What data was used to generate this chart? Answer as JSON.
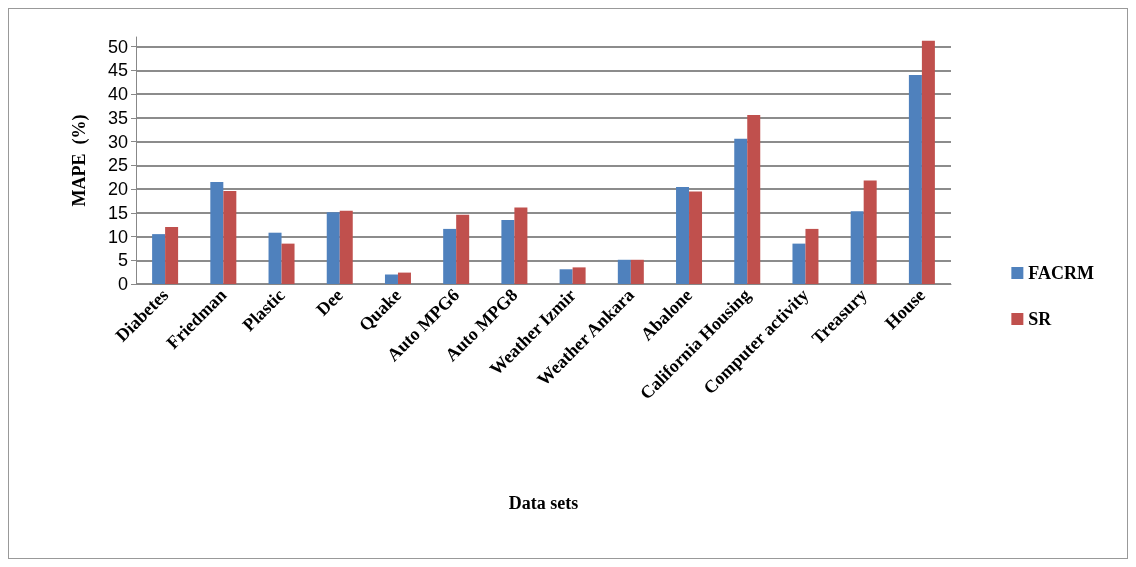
{
  "chart_data": {
    "type": "bar",
    "xlabel": "Data sets",
    "ylabel": "MAPE  (%)",
    "categories": [
      "Diabetes",
      "Friedman",
      "Plastic",
      "Dee",
      "Quake",
      "Auto MPG6",
      "Auto MPG8",
      "Weather Izmir",
      "Weather Ankara",
      "Abalone",
      "California Housing",
      "Computer activity",
      "Treasury",
      "House"
    ],
    "series": [
      {
        "name": "FACRM",
        "color": "#4f81bd",
        "values": [
          10.5,
          21.5,
          10.8,
          15.1,
          2.0,
          11.6,
          13.5,
          3.1,
          5.1,
          20.4,
          30.6,
          8.5,
          15.3,
          44.0
        ]
      },
      {
        "name": "SR",
        "color": "#c0504d",
        "values": [
          12.0,
          19.6,
          8.5,
          15.4,
          2.4,
          14.6,
          16.1,
          3.5,
          5.1,
          19.5,
          35.6,
          11.6,
          21.8,
          51.2
        ]
      }
    ],
    "ylim": [
      0,
      52
    ],
    "yticks": [
      0,
      5,
      10,
      15,
      20,
      25,
      30,
      35,
      40,
      45,
      50
    ],
    "grid": "y",
    "legend": "right"
  }
}
